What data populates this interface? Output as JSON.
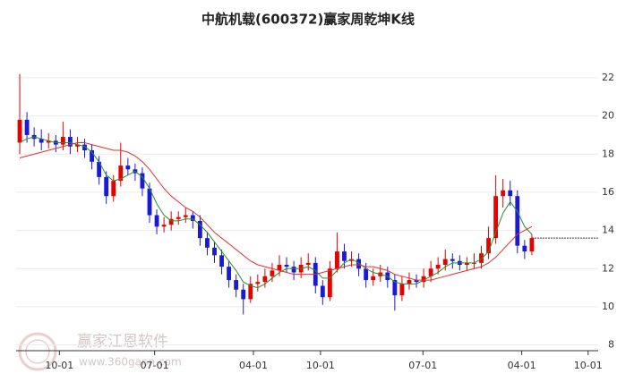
{
  "chart_data": {
    "type": "candlestick",
    "title": "中航机载(600372)赢家周乾坤K线",
    "watermark": "赢家江恩软件",
    "watermark_url": "www.360gann.com",
    "up_color": "#e60000",
    "down_color": "#1a1ad6",
    "ylim": [
      7.7,
      24.2
    ],
    "yticks": [
      8,
      10,
      12,
      14,
      16,
      18,
      20,
      22
    ],
    "grid": true,
    "xlim": [
      -0.5,
      80.2
    ],
    "xticks": [
      {
        "value": 5.5,
        "label": "10-01"
      },
      {
        "value": 18.7,
        "label": "07-01"
      },
      {
        "value": 32.4,
        "label": "04-01"
      },
      {
        "value": 41.7,
        "label": "10-01"
      },
      {
        "value": 55.9,
        "label": "07-01"
      },
      {
        "value": 69.6,
        "label": "04-01"
      },
      {
        "value": 78.8,
        "label": "10-01"
      }
    ],
    "candles": [
      [
        18.6,
        22.2,
        18.0,
        19.8
      ],
      [
        19.8,
        20.2,
        18.6,
        19.0
      ],
      [
        19.0,
        19.4,
        18.4,
        18.8
      ],
      [
        18.8,
        19.3,
        18.2,
        18.6
      ],
      [
        18.6,
        19.1,
        18.3,
        18.7
      ],
      [
        18.7,
        19.0,
        18.1,
        18.5
      ],
      [
        18.5,
        19.7,
        18.2,
        18.9
      ],
      [
        18.9,
        19.3,
        18.0,
        18.4
      ],
      [
        18.4,
        18.9,
        18.1,
        18.5
      ],
      [
        18.5,
        18.8,
        17.8,
        18.2
      ],
      [
        18.2,
        18.5,
        17.2,
        17.6
      ],
      [
        17.6,
        17.9,
        16.4,
        16.8
      ],
      [
        16.8,
        17.1,
        15.4,
        15.8
      ],
      [
        15.8,
        16.9,
        15.5,
        16.6
      ],
      [
        16.6,
        18.6,
        16.3,
        17.4
      ],
      [
        17.4,
        17.8,
        16.9,
        17.2
      ],
      [
        17.2,
        17.5,
        16.6,
        17.0
      ],
      [
        17.0,
        17.3,
        15.8,
        16.2
      ],
      [
        16.2,
        16.5,
        14.4,
        14.8
      ],
      [
        14.8,
        15.1,
        13.8,
        14.2
      ],
      [
        14.2,
        14.7,
        13.9,
        14.3
      ],
      [
        14.3,
        15.0,
        14.0,
        14.6
      ],
      [
        14.6,
        15.0,
        14.3,
        14.7
      ],
      [
        14.7,
        15.2,
        14.4,
        14.8
      ],
      [
        14.8,
        15.0,
        14.1,
        14.5
      ],
      [
        14.5,
        14.8,
        13.2,
        13.6
      ],
      [
        13.6,
        13.9,
        12.7,
        13.1
      ],
      [
        13.1,
        13.4,
        12.3,
        12.7
      ],
      [
        12.7,
        13.0,
        11.7,
        12.1
      ],
      [
        12.1,
        12.4,
        11.0,
        11.4
      ],
      [
        11.4,
        11.7,
        10.5,
        10.9
      ],
      [
        10.9,
        11.2,
        9.6,
        10.4
      ],
      [
        10.4,
        11.6,
        10.2,
        11.2
      ],
      [
        11.2,
        11.7,
        10.8,
        11.3
      ],
      [
        11.3,
        12.0,
        11.0,
        11.6
      ],
      [
        11.6,
        12.3,
        11.3,
        11.9
      ],
      [
        11.9,
        12.7,
        11.6,
        12.2
      ],
      [
        12.2,
        12.6,
        11.8,
        12.1
      ],
      [
        12.1,
        12.4,
        11.4,
        11.8
      ],
      [
        11.8,
        12.6,
        11.5,
        12.2
      ],
      [
        12.2,
        12.8,
        11.9,
        12.3
      ],
      [
        12.3,
        12.6,
        10.7,
        11.1
      ],
      [
        11.1,
        11.4,
        10.1,
        10.5
      ],
      [
        10.5,
        12.4,
        10.3,
        12.0
      ],
      [
        12.0,
        13.9,
        11.8,
        12.9
      ],
      [
        12.9,
        13.3,
        12.0,
        12.4
      ],
      [
        12.4,
        12.9,
        12.1,
        12.5
      ],
      [
        12.5,
        12.8,
        11.6,
        12.0
      ],
      [
        12.0,
        12.3,
        11.0,
        11.4
      ],
      [
        11.4,
        12.0,
        11.1,
        11.6
      ],
      [
        11.6,
        12.2,
        11.3,
        11.8
      ],
      [
        11.8,
        12.1,
        11.0,
        11.4
      ],
      [
        11.4,
        11.7,
        9.8,
        10.6
      ],
      [
        10.6,
        11.6,
        10.3,
        11.2
      ],
      [
        11.2,
        11.8,
        10.9,
        11.4
      ],
      [
        11.4,
        11.7,
        11.0,
        11.3
      ],
      [
        11.3,
        12.0,
        11.0,
        11.6
      ],
      [
        11.6,
        12.4,
        11.3,
        12.0
      ],
      [
        12.0,
        12.6,
        11.7,
        12.2
      ],
      [
        12.2,
        13.0,
        11.9,
        12.5
      ],
      [
        12.5,
        12.8,
        12.0,
        12.4
      ],
      [
        12.4,
        12.7,
        11.9,
        12.2
      ],
      [
        12.2,
        12.6,
        11.9,
        12.3
      ],
      [
        12.3,
        12.8,
        12.0,
        12.3
      ],
      [
        12.3,
        13.2,
        12.0,
        12.8
      ],
      [
        12.8,
        14.2,
        12.5,
        13.6
      ],
      [
        13.6,
        16.9,
        13.3,
        15.8
      ],
      [
        15.8,
        16.7,
        15.2,
        16.1
      ],
      [
        16.1,
        16.6,
        15.3,
        15.8
      ],
      [
        15.8,
        16.1,
        12.8,
        13.2
      ],
      [
        13.2,
        13.5,
        12.5,
        12.9
      ],
      [
        12.9,
        13.8,
        12.7,
        13.6
      ]
    ],
    "ma_lines": [
      {
        "color": "#2e8b2e",
        "values": [
          18.6,
          18.8,
          18.9,
          18.8,
          18.7,
          18.6,
          18.6,
          18.6,
          18.5,
          18.4,
          18.1,
          17.6,
          16.9,
          16.6,
          16.7,
          16.9,
          17.1,
          16.8,
          16.2,
          15.4,
          14.8,
          14.5,
          14.5,
          14.6,
          14.6,
          14.3,
          13.9,
          13.4,
          12.9,
          12.4,
          11.9,
          11.3,
          11.1,
          11.0,
          11.2,
          11.5,
          11.8,
          12.0,
          12.0,
          12.0,
          12.1,
          11.9,
          11.5,
          11.5,
          11.9,
          12.3,
          12.5,
          12.3,
          12.0,
          11.8,
          11.7,
          11.6,
          11.3,
          11.2,
          11.2,
          11.2,
          11.4,
          11.6,
          11.8,
          12.1,
          12.3,
          12.3,
          12.3,
          12.3,
          12.5,
          12.9,
          13.9,
          14.9,
          15.5,
          15.0,
          14.2,
          13.8
        ]
      },
      {
        "color": "#e03030",
        "values": [
          17.8,
          17.9,
          18.0,
          18.1,
          18.2,
          18.3,
          18.4,
          18.5,
          18.6,
          18.6,
          18.5,
          18.4,
          18.3,
          18.2,
          18.2,
          18.1,
          17.9,
          17.6,
          17.2,
          16.7,
          16.2,
          15.8,
          15.5,
          15.2,
          15.0,
          14.7,
          14.3,
          13.9,
          13.6,
          13.3,
          13.0,
          12.7,
          12.4,
          12.2,
          12.1,
          12.0,
          11.9,
          11.8,
          11.7,
          11.7,
          11.7,
          11.7,
          11.8,
          11.9,
          12.0,
          12.1,
          12.2,
          12.2,
          12.1,
          12.1,
          12.0,
          11.9,
          11.7,
          11.6,
          11.5,
          11.4,
          11.4,
          11.4,
          11.5,
          11.6,
          11.7,
          11.8,
          11.9,
          12.0,
          12.1,
          12.3,
          12.6,
          13.0,
          13.4,
          13.8,
          14.0,
          14.2
        ]
      }
    ]
  }
}
